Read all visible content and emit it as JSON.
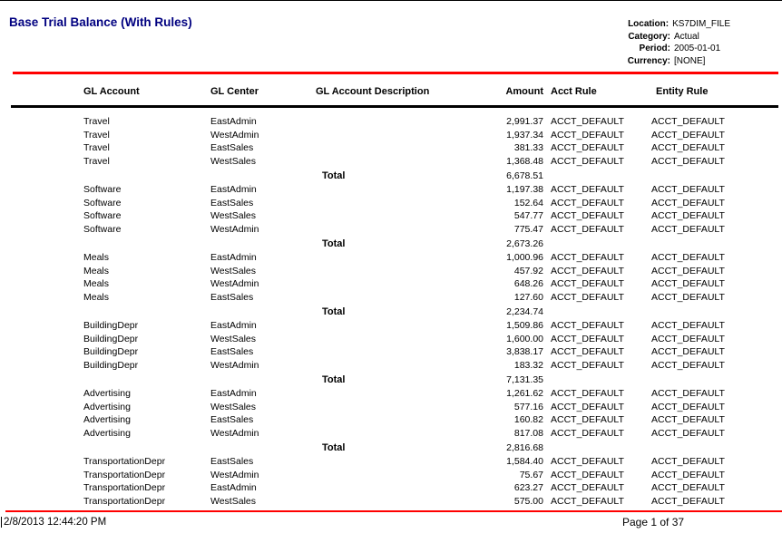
{
  "title": "Base Trial Balance (With Rules)",
  "colors": {
    "title_navy": "#000080",
    "rule_red": "#ff0000",
    "rule_black": "#000000"
  },
  "meta": [
    {
      "label": "Location:",
      "value": "KS7DIM_FILE"
    },
    {
      "label": "Category:",
      "value": "Actual"
    },
    {
      "label": "Period:",
      "value": "2005-01-01"
    },
    {
      "label": "Currency:",
      "value": "[NONE]"
    }
  ],
  "table": {
    "columns": [
      "GL Account",
      "GL Center",
      "GL Account Description",
      "Amount",
      "Acct Rule",
      "Entity Rule"
    ],
    "total_label": "Total",
    "groups": [
      {
        "rows": [
          {
            "account": "Travel",
            "center": "EastAdmin",
            "description": "",
            "amount": "2,991.37",
            "acct_rule": "ACCT_DEFAULT",
            "entity_rule": "ACCT_DEFAULT"
          },
          {
            "account": "Travel",
            "center": "WestAdmin",
            "description": "",
            "amount": "1,937.34",
            "acct_rule": "ACCT_DEFAULT",
            "entity_rule": "ACCT_DEFAULT"
          },
          {
            "account": "Travel",
            "center": "EastSales",
            "description": "",
            "amount": "381.33",
            "acct_rule": "ACCT_DEFAULT",
            "entity_rule": "ACCT_DEFAULT"
          },
          {
            "account": "Travel",
            "center": "WestSales",
            "description": "",
            "amount": "1,368.48",
            "acct_rule": "ACCT_DEFAULT",
            "entity_rule": "ACCT_DEFAULT"
          }
        ],
        "total": "6,678.51"
      },
      {
        "rows": [
          {
            "account": "Software",
            "center": "EastAdmin",
            "description": "",
            "amount": "1,197.38",
            "acct_rule": "ACCT_DEFAULT",
            "entity_rule": "ACCT_DEFAULT"
          },
          {
            "account": "Software",
            "center": "EastSales",
            "description": "",
            "amount": "152.64",
            "acct_rule": "ACCT_DEFAULT",
            "entity_rule": "ACCT_DEFAULT"
          },
          {
            "account": "Software",
            "center": "WestSales",
            "description": "",
            "amount": "547.77",
            "acct_rule": "ACCT_DEFAULT",
            "entity_rule": "ACCT_DEFAULT"
          },
          {
            "account": "Software",
            "center": "WestAdmin",
            "description": "",
            "amount": "775.47",
            "acct_rule": "ACCT_DEFAULT",
            "entity_rule": "ACCT_DEFAULT"
          }
        ],
        "total": "2,673.26"
      },
      {
        "rows": [
          {
            "account": "Meals",
            "center": "EastAdmin",
            "description": "",
            "amount": "1,000.96",
            "acct_rule": "ACCT_DEFAULT",
            "entity_rule": "ACCT_DEFAULT"
          },
          {
            "account": "Meals",
            "center": "WestSales",
            "description": "",
            "amount": "457.92",
            "acct_rule": "ACCT_DEFAULT",
            "entity_rule": "ACCT_DEFAULT"
          },
          {
            "account": "Meals",
            "center": "WestAdmin",
            "description": "",
            "amount": "648.26",
            "acct_rule": "ACCT_DEFAULT",
            "entity_rule": "ACCT_DEFAULT"
          },
          {
            "account": "Meals",
            "center": "EastSales",
            "description": "",
            "amount": "127.60",
            "acct_rule": "ACCT_DEFAULT",
            "entity_rule": "ACCT_DEFAULT"
          }
        ],
        "total": "2,234.74"
      },
      {
        "rows": [
          {
            "account": "BuildingDepr",
            "center": "EastAdmin",
            "description": "",
            "amount": "1,509.86",
            "acct_rule": "ACCT_DEFAULT",
            "entity_rule": "ACCT_DEFAULT"
          },
          {
            "account": "BuildingDepr",
            "center": "WestSales",
            "description": "",
            "amount": "1,600.00",
            "acct_rule": "ACCT_DEFAULT",
            "entity_rule": "ACCT_DEFAULT"
          },
          {
            "account": "BuildingDepr",
            "center": "EastSales",
            "description": "",
            "amount": "3,838.17",
            "acct_rule": "ACCT_DEFAULT",
            "entity_rule": "ACCT_DEFAULT"
          },
          {
            "account": "BuildingDepr",
            "center": "WestAdmin",
            "description": "",
            "amount": "183.32",
            "acct_rule": "ACCT_DEFAULT",
            "entity_rule": "ACCT_DEFAULT"
          }
        ],
        "total": "7,131.35"
      },
      {
        "rows": [
          {
            "account": "Advertising",
            "center": "EastAdmin",
            "description": "",
            "amount": "1,261.62",
            "acct_rule": "ACCT_DEFAULT",
            "entity_rule": "ACCT_DEFAULT"
          },
          {
            "account": "Advertising",
            "center": "WestSales",
            "description": "",
            "amount": "577.16",
            "acct_rule": "ACCT_DEFAULT",
            "entity_rule": "ACCT_DEFAULT"
          },
          {
            "account": "Advertising",
            "center": "EastSales",
            "description": "",
            "amount": "160.82",
            "acct_rule": "ACCT_DEFAULT",
            "entity_rule": "ACCT_DEFAULT"
          },
          {
            "account": "Advertising",
            "center": "WestAdmin",
            "description": "",
            "amount": "817.08",
            "acct_rule": "ACCT_DEFAULT",
            "entity_rule": "ACCT_DEFAULT"
          }
        ],
        "total": "2,816.68"
      },
      {
        "rows": [
          {
            "account": "TransportationDepr",
            "center": "EastSales",
            "description": "",
            "amount": "1,584.40",
            "acct_rule": "ACCT_DEFAULT",
            "entity_rule": "ACCT_DEFAULT"
          },
          {
            "account": "TransportationDepr",
            "center": "WestAdmin",
            "description": "",
            "amount": "75.67",
            "acct_rule": "ACCT_DEFAULT",
            "entity_rule": "ACCT_DEFAULT"
          },
          {
            "account": "TransportationDepr",
            "center": "EastAdmin",
            "description": "",
            "amount": "623.27",
            "acct_rule": "ACCT_DEFAULT",
            "entity_rule": "ACCT_DEFAULT"
          },
          {
            "account": "TransportationDepr",
            "center": "WestSales",
            "description": "",
            "amount": "575.00",
            "acct_rule": "ACCT_DEFAULT",
            "entity_rule": "ACCT_DEFAULT"
          }
        ],
        "total": null
      }
    ]
  },
  "footer": {
    "timestamp": "2/8/2013 12:44:20 PM",
    "page": "Page 1 of 37"
  }
}
